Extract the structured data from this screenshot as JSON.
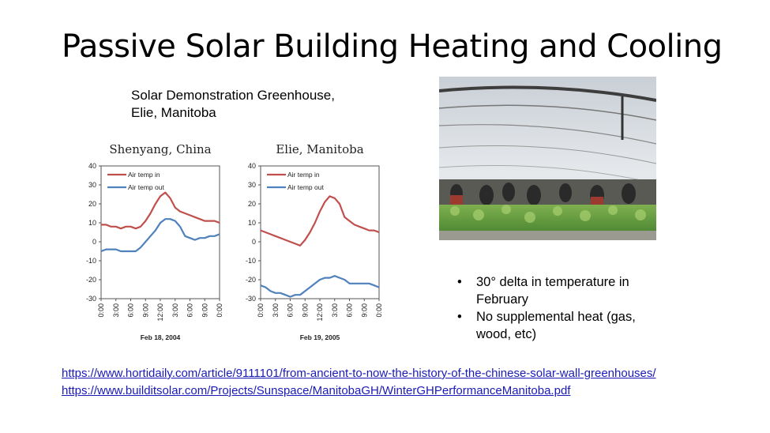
{
  "slide": {
    "title": "Passive Solar Building Heating and Cooling",
    "subtitle_line1": "Solar Demonstration Greenhouse,",
    "subtitle_line2": "Elie, Manitoba",
    "bullets": [
      "30° delta in temperature in February",
      "No supplemental heat (gas, wood, etc)"
    ],
    "links": [
      "https://www.hortidaily.com/article/9111101/from-ancient-to-now-the-history-of-the-chinese-solar-wall-greenhouses/",
      "https://www.builditsolar.com/Projects/Sunspace/ManitobaGH/WinterGHPerformanceManitoba.pdf"
    ]
  },
  "colors": {
    "air_temp_in": "#c0504d",
    "air_temp_out": "#4f81bd",
    "link": "#1a1ab8"
  },
  "chart_data": [
    {
      "type": "line",
      "title": "Shenyang, China",
      "xlabel": "Feb 18, 2004",
      "ylabel": "",
      "x_ticks": [
        "0:00",
        "3:00",
        "6:00",
        "9:00",
        "12:00",
        "3:00",
        "6:00",
        "9:00",
        "0:00"
      ],
      "y_ticks": [
        40,
        30,
        20,
        10,
        0,
        -10,
        -20,
        -30
      ],
      "xlim": [
        0,
        24
      ],
      "ylim": [
        -30,
        40
      ],
      "grid": false,
      "legend": "top-left",
      "series": [
        {
          "name": "Air temp in",
          "color": "#c0504d",
          "x": [
            0,
            1,
            2,
            3,
            4,
            5,
            6,
            7,
            8,
            9,
            10,
            11,
            12,
            13,
            14,
            15,
            16,
            17,
            18,
            19,
            20,
            21,
            22,
            23,
            24
          ],
          "values": [
            9,
            9,
            8,
            8,
            7,
            8,
            8,
            7,
            8,
            11,
            15,
            20,
            24,
            26,
            23,
            18,
            16,
            15,
            14,
            13,
            12,
            11,
            11,
            11,
            10
          ]
        },
        {
          "name": "Air temp out",
          "color": "#4f81bd",
          "x": [
            0,
            1,
            2,
            3,
            4,
            5,
            6,
            7,
            8,
            9,
            10,
            11,
            12,
            13,
            14,
            15,
            16,
            17,
            18,
            19,
            20,
            21,
            22,
            23,
            24
          ],
          "values": [
            -5,
            -4,
            -4,
            -4,
            -5,
            -5,
            -5,
            -5,
            -3,
            0,
            3,
            6,
            10,
            12,
            12,
            11,
            8,
            3,
            2,
            1,
            2,
            2,
            3,
            3,
            4
          ]
        }
      ]
    },
    {
      "type": "line",
      "title": "Elie, Manitoba",
      "xlabel": "Feb 19, 2005",
      "ylabel": "",
      "x_ticks": [
        "0:00",
        "3:00",
        "6:00",
        "9:00",
        "12:00",
        "3:00",
        "6:00",
        "9:00",
        "0:00"
      ],
      "y_ticks": [
        40,
        30,
        20,
        10,
        0,
        -10,
        -20,
        -30
      ],
      "xlim": [
        0,
        24
      ],
      "ylim": [
        -30,
        40
      ],
      "grid": false,
      "legend": "top-left",
      "series": [
        {
          "name": "Air temp in",
          "color": "#c0504d",
          "x": [
            0,
            1,
            2,
            3,
            4,
            5,
            6,
            7,
            8,
            9,
            10,
            11,
            12,
            13,
            14,
            15,
            16,
            17,
            18,
            19,
            20,
            21,
            22,
            23,
            24
          ],
          "values": [
            6,
            5,
            4,
            3,
            2,
            1,
            0,
            -1,
            -2,
            1,
            5,
            10,
            16,
            21,
            24,
            23,
            20,
            13,
            11,
            9,
            8,
            7,
            6,
            6,
            5
          ]
        },
        {
          "name": "Air temp out",
          "color": "#4f81bd",
          "x": [
            0,
            1,
            2,
            3,
            4,
            5,
            6,
            7,
            8,
            9,
            10,
            11,
            12,
            13,
            14,
            15,
            16,
            17,
            18,
            19,
            20,
            21,
            22,
            23,
            24
          ],
          "values": [
            -23,
            -24,
            -26,
            -27,
            -27,
            -28,
            -29,
            -28,
            -28,
            -26,
            -24,
            -22,
            -20,
            -19,
            -19,
            -18,
            -19,
            -20,
            -22,
            -22,
            -22,
            -22,
            -22,
            -23,
            -24
          ]
        }
      ]
    }
  ]
}
